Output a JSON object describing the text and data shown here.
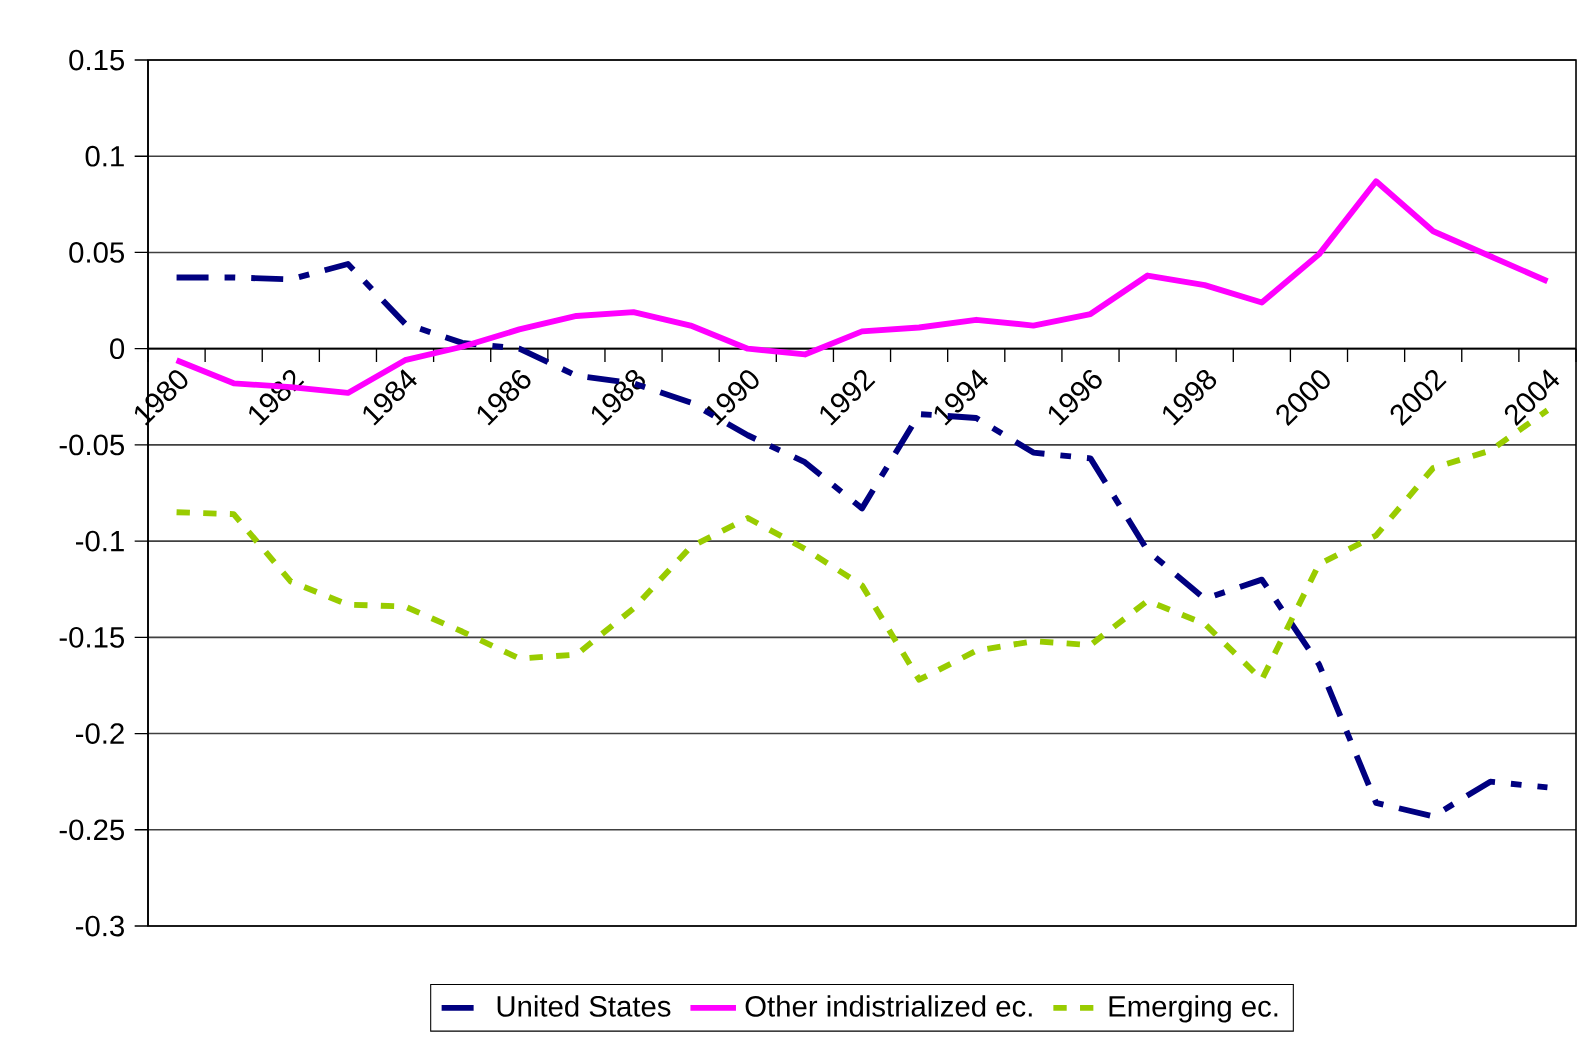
{
  "chart_data": {
    "type": "line",
    "categories": [
      "1980",
      null,
      "1982",
      null,
      "1984",
      null,
      "1986",
      null,
      "1988",
      null,
      "1990",
      null,
      "1992",
      null,
      "1994",
      null,
      "1996",
      null,
      "1998",
      null,
      "2000",
      null,
      "2002",
      null,
      "2004"
    ],
    "series": [
      {
        "name": "United States",
        "color": "#000080",
        "line_style": "dashed",
        "values": [
          0.037,
          0.037,
          0.036,
          0.044,
          0.013,
          0.003,
          0.0,
          -0.014,
          -0.018,
          -0.028,
          -0.045,
          -0.059,
          -0.083,
          -0.034,
          -0.036,
          -0.054,
          -0.057,
          -0.105,
          -0.13,
          -0.12,
          -0.164,
          -0.236,
          -0.243,
          -0.225,
          -0.228
        ]
      },
      {
        "name": "Other indistrialized ec.",
        "color": "#ff00ff",
        "line_style": "solid",
        "values": [
          -0.006,
          -0.018,
          -0.02,
          -0.023,
          -0.006,
          0.001,
          0.01,
          0.017,
          0.019,
          0.012,
          0.0,
          -0.003,
          0.009,
          0.011,
          0.015,
          0.012,
          0.018,
          0.038,
          0.033,
          0.024,
          0.049,
          0.087,
          0.061,
          0.048,
          0.035
        ]
      },
      {
        "name": "Emerging ec.",
        "color": "#99cc00",
        "line_style": "dotted",
        "values": [
          -0.085,
          -0.086,
          -0.121,
          -0.133,
          -0.134,
          -0.147,
          -0.161,
          -0.159,
          -0.135,
          -0.103,
          -0.088,
          -0.104,
          -0.123,
          -0.172,
          -0.157,
          -0.152,
          -0.154,
          -0.131,
          -0.143,
          -0.172,
          -0.112,
          -0.097,
          -0.062,
          -0.053,
          -0.032
        ]
      }
    ],
    "ylim": [
      -0.3,
      0.15
    ],
    "yticks": [
      -0.3,
      -0.25,
      -0.2,
      -0.15,
      -0.1,
      -0.05,
      0,
      0.05,
      0.1,
      0.15
    ],
    "grid": "y",
    "legend": "bottom"
  }
}
